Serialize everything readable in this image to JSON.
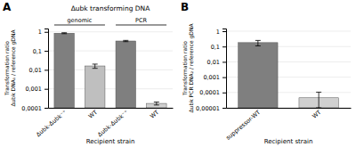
{
  "chart_data": [
    {
      "type": "bar",
      "panel_label": "A",
      "title": "Δubk transforming DNA",
      "xlabel": "Recipient strain",
      "ylabel": "Transformation ratio\nΔubk DNA₁ / reference gDNA",
      "categories": [
        "Δubk-Δubk⁻⁺",
        "WT",
        "Δubk-Δubk⁻⁺",
        "WT"
      ],
      "values": [
        0.85,
        0.016,
        0.33,
        0.00017
      ],
      "errors_up": [
        0.05,
        0.004,
        0.025,
        3e-05
      ],
      "errors_down": [
        0.05,
        0.004,
        0.025,
        3e-05
      ],
      "colors": [
        "#7f7f7f",
        "#bfbfbf",
        "#7f7f7f",
        "#d0d0d0"
      ],
      "log": "y",
      "ylim": [
        0.0001,
        1.5
      ],
      "yticks": [
        {
          "value": 0.0001,
          "label": "0,0001"
        },
        {
          "value": 0.001,
          "label": "0,001"
        },
        {
          "value": 0.01,
          "label": "0,01"
        },
        {
          "value": 0.1,
          "label": "0,1"
        },
        1
      ],
      "grid": true,
      "annotations": [
        {
          "text": "genomic",
          "span": [
            0,
            1
          ]
        },
        {
          "text": "PCR",
          "span": [
            2,
            3
          ]
        }
      ]
    },
    {
      "type": "bar",
      "panel_label": "B",
      "xlabel": "Recipient strain",
      "ylabel": "Transformation ratio\nΔubk PCR DNA₂ / reference gDNA",
      "categories": [
        "suppressor-WT",
        "WT"
      ],
      "values": [
        0.18,
        4.5e-05
      ],
      "errors_up": [
        0.07,
        6e-05
      ],
      "errors_down": [
        0.07,
        3.5e-05
      ],
      "colors": [
        "#7f7f7f",
        "#d0d0d0"
      ],
      "log": "y",
      "ylim": [
        1e-05,
        1.5
      ],
      "yticks": [
        {
          "value": 1e-05,
          "label": "0,00001"
        },
        {
          "value": 0.0001,
          "label": "0,0001"
        },
        {
          "value": 0.001,
          "label": "0,001"
        },
        {
          "value": 0.01,
          "label": "0,01"
        },
        {
          "value": 0.1,
          "label": "0,1"
        },
        1
      ],
      "grid": true
    }
  ]
}
